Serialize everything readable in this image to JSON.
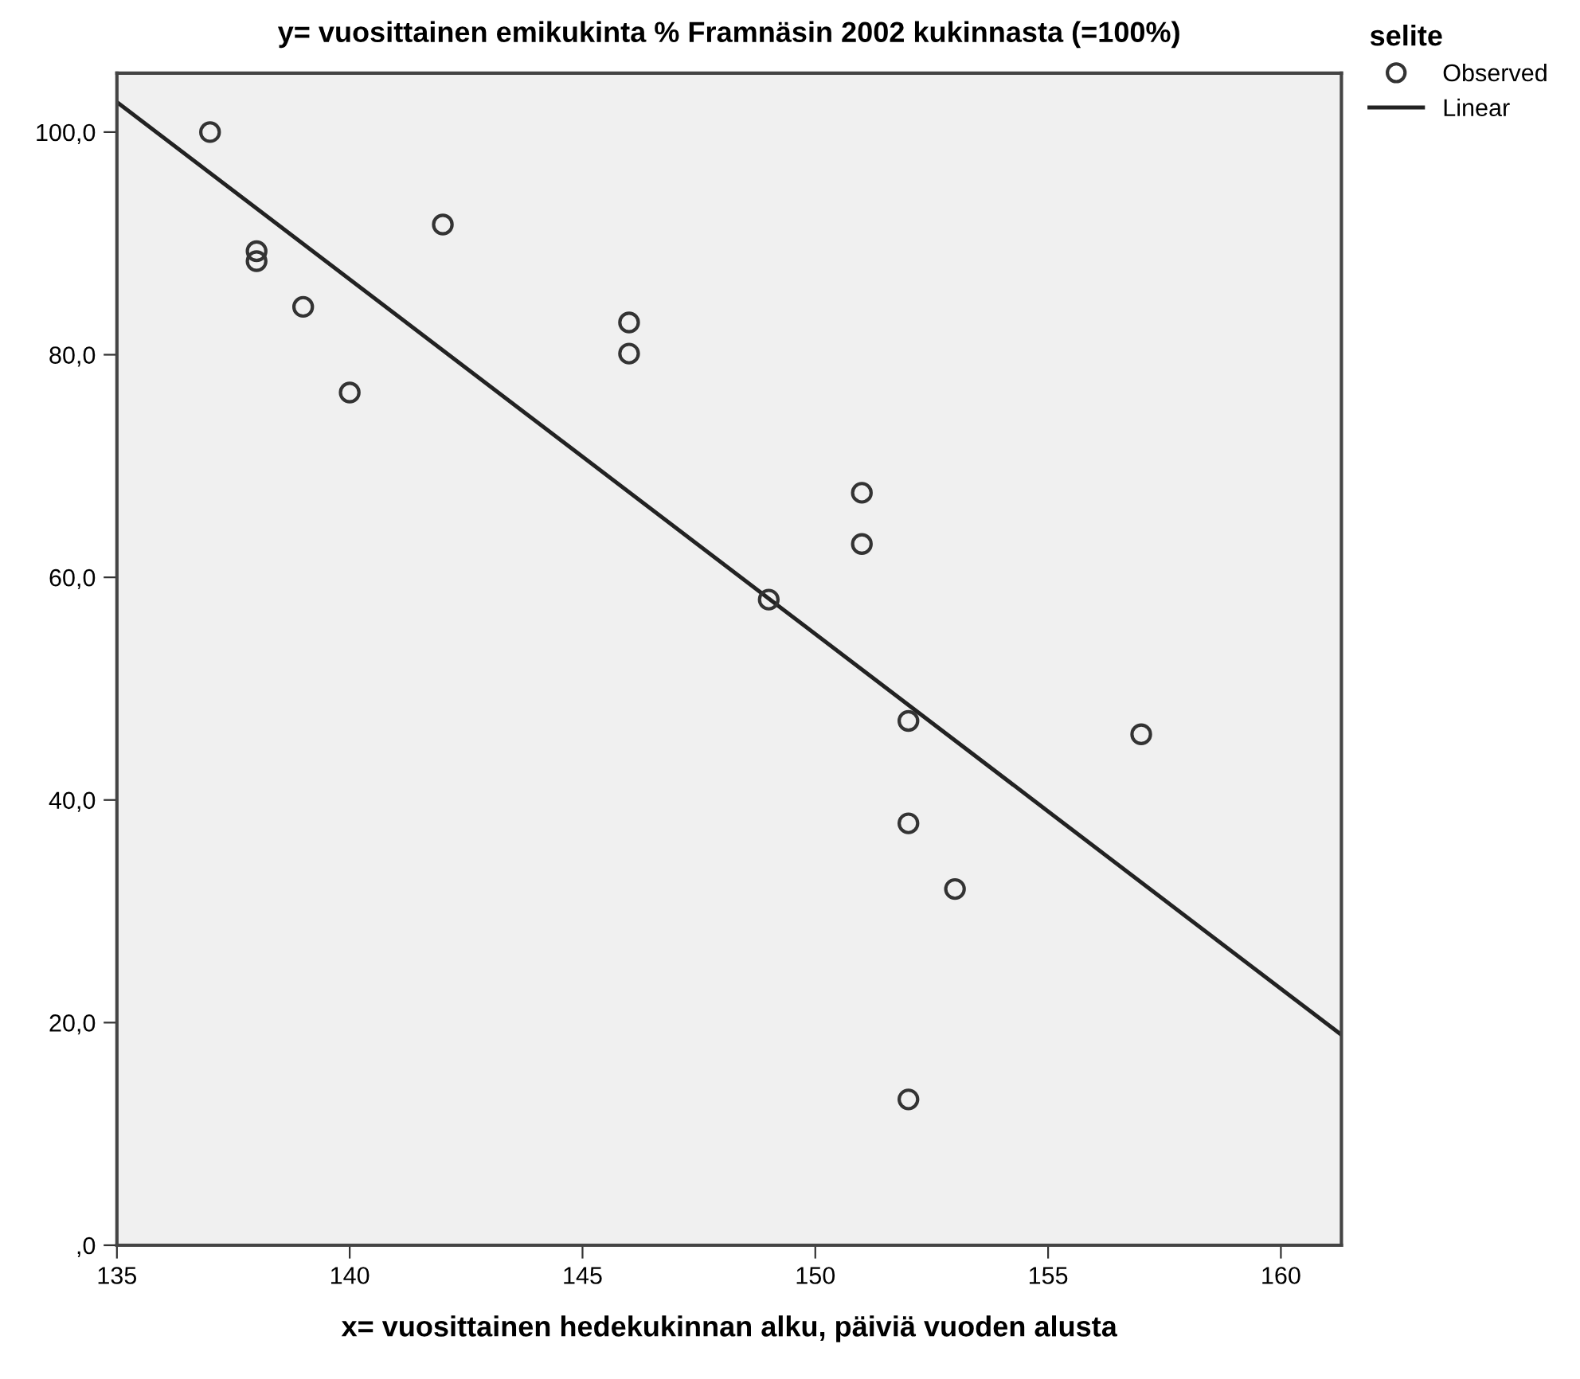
{
  "chart_data": {
    "type": "scatter",
    "ylabel": "y= vuosittainen emikukinta % Framnäsin 2002 kukinnasta (=100%)",
    "xlabel": "x= vuosittainen hedekukinnan alku, päiviä vuoden alusta",
    "legend_title": "selite",
    "legend": "top right",
    "grid": false,
    "xlim": [
      135,
      161.3
    ],
    "xticks": [
      135,
      140,
      145,
      150,
      155,
      160
    ],
    "ylim": [
      0,
      105.3
    ],
    "yticks": [
      {
        "value": 0,
        "label": ",0"
      },
      {
        "value": 20,
        "label": "20,0"
      },
      {
        "value": 40,
        "label": "40,0"
      },
      {
        "value": 60,
        "label": "60,0"
      },
      {
        "value": 80,
        "label": "80,0"
      },
      {
        "value": 100,
        "label": "100,0"
      }
    ],
    "series": [
      {
        "name": "Observed",
        "marker": "circle",
        "color": "#333333",
        "x": [
          137,
          138,
          138,
          139,
          140,
          142,
          146,
          146,
          149,
          151,
          151,
          152,
          152,
          153,
          152,
          157
        ],
        "values": [
          100,
          89.3,
          88.4,
          84.3,
          76.6,
          91.7,
          82.9,
          80.1,
          58.0,
          67.6,
          63.0,
          47.1,
          37.9,
          32.0,
          13.1,
          45.9
        ]
      },
      {
        "name": "Linear",
        "type": "line",
        "line_style": "solid",
        "color": "#222222",
        "x": [
          135,
          161.3
        ],
        "values": [
          102.7,
          18.9
        ]
      }
    ]
  }
}
